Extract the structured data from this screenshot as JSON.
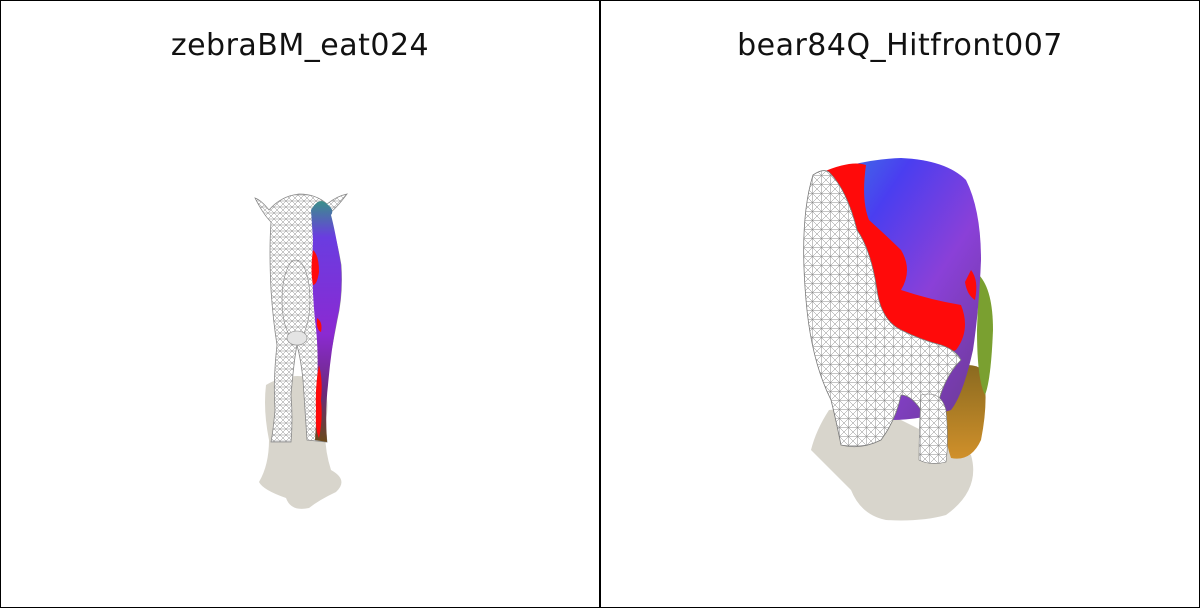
{
  "panels": [
    {
      "title": "zebraBM_eat024",
      "render_icon": "zebra-mesh-render"
    },
    {
      "title": "bear84Q_Hitfront007",
      "render_icon": "bear-mesh-render"
    }
  ],
  "colors": {
    "shadow": "#d8d5cc",
    "mesh_line": "#9a9a9a",
    "red": "#ff0a0a",
    "blue": "#3a4cf2",
    "purple": "#8a3bd6",
    "green": "#4aa832"
  }
}
